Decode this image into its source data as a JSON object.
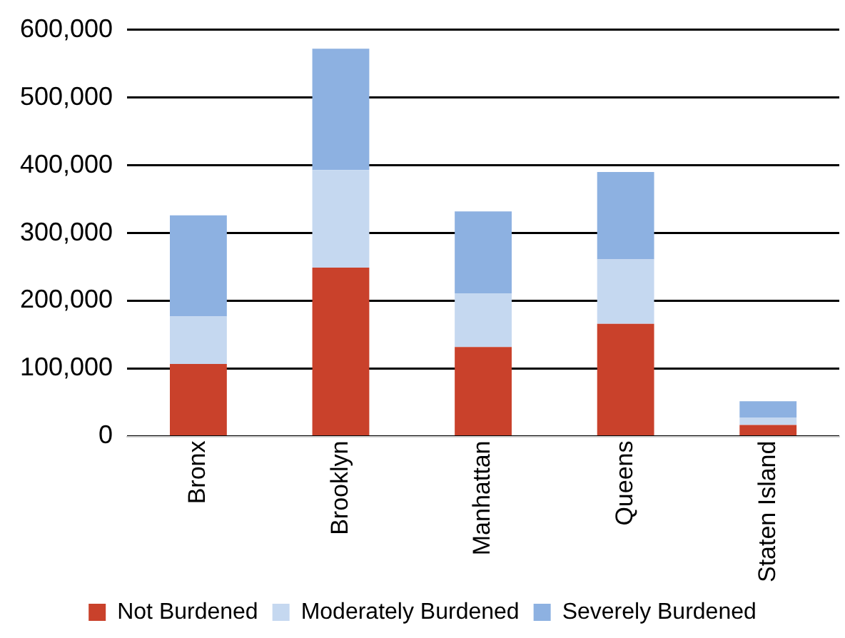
{
  "chart_data": {
    "type": "bar",
    "stacked": true,
    "categories": [
      "Bronx",
      "Brooklyn",
      "Manhattan",
      "Queens",
      "Staten Island"
    ],
    "series": [
      {
        "name": "Not Burdened",
        "color": "#c9412b",
        "values": [
          107000,
          249000,
          132000,
          166000,
          17000
        ]
      },
      {
        "name": "Moderately Burdened",
        "color": "#c5d8f0",
        "values": [
          70000,
          144000,
          79000,
          95000,
          11000
        ]
      },
      {
        "name": "Severely Burdened",
        "color": "#8db1e1",
        "values": [
          149000,
          179000,
          121000,
          129000,
          24000
        ]
      }
    ],
    "ylim": [
      0,
      600000
    ],
    "yticks": [
      {
        "value": 0,
        "label": "0"
      },
      {
        "value": 100000,
        "label": "100,000"
      },
      {
        "value": 200000,
        "label": "200,000"
      },
      {
        "value": 300000,
        "label": "300,000"
      },
      {
        "value": 400000,
        "label": "400,000"
      },
      {
        "value": 500000,
        "label": "500,000"
      },
      {
        "value": 600000,
        "label": "600,000"
      }
    ],
    "grid": "y",
    "legend": "bottom"
  }
}
